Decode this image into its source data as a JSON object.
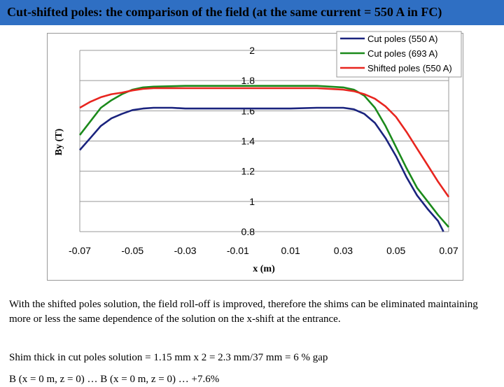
{
  "slide": {
    "title": "Cut-shifted poles: the comparison of the field (at the same current = 550 A in FC)",
    "paragraph1": "With the shifted poles solution, the field roll-off is improved, therefore the shims can be eliminated maintaining more or less the same dependence of the solution on the x-shift at the entrance.",
    "paragraph2": "Shim thick in cut poles solution = 1.15 mm x 2 = 2.3 mm/37 mm = 6 % gap",
    "paragraph3": "B (x = 0 m, z = 0) … B (x = 0 m, z = 0) … +7.6%"
  },
  "colors": {
    "title_bar": "#2f6fc3",
    "cut_550": "#1a237e",
    "cut_693": "#1b8a1b",
    "shifted_550": "#e8251f",
    "plot_border": "#999999",
    "gridline": "#999999"
  },
  "chart_data": {
    "type": "line",
    "xlabel": "x (m)",
    "ylabel": "By (T)",
    "xlim": [
      -0.07,
      0.07
    ],
    "ylim": [
      0.8,
      2.0
    ],
    "xticks": [
      -0.07,
      -0.05,
      -0.03,
      -0.01,
      0.01,
      0.03,
      0.05,
      0.07
    ],
    "xtick_labels": [
      "-0.07",
      "-0.05",
      "-0.03",
      "-0.01",
      "0.01",
      "0.03",
      "0.05",
      "0.07"
    ],
    "yticks": [
      0.8,
      1.0,
      1.2,
      1.4,
      1.6,
      1.8,
      2.0
    ],
    "ytick_labels": [
      "0.8",
      "1",
      "1.2",
      "1.4",
      "1.6",
      "1.8",
      "2"
    ],
    "grid": "horizontal",
    "legend_position": "top-right",
    "series": [
      {
        "name": "Cut poles (550 A)",
        "color": "#1a237e",
        "points": [
          [
            -0.07,
            1.34
          ],
          [
            -0.066,
            1.42
          ],
          [
            -0.062,
            1.5
          ],
          [
            -0.058,
            1.55
          ],
          [
            -0.054,
            1.58
          ],
          [
            -0.05,
            1.605
          ],
          [
            -0.046,
            1.615
          ],
          [
            -0.042,
            1.62
          ],
          [
            -0.035,
            1.62
          ],
          [
            -0.03,
            1.615
          ],
          [
            -0.02,
            1.615
          ],
          [
            -0.01,
            1.615
          ],
          [
            0.0,
            1.615
          ],
          [
            0.01,
            1.615
          ],
          [
            0.02,
            1.62
          ],
          [
            0.03,
            1.62
          ],
          [
            0.034,
            1.61
          ],
          [
            0.038,
            1.58
          ],
          [
            0.042,
            1.52
          ],
          [
            0.046,
            1.42
          ],
          [
            0.05,
            1.3
          ],
          [
            0.054,
            1.16
          ],
          [
            0.058,
            1.04
          ],
          [
            0.062,
            0.95
          ],
          [
            0.066,
            0.87
          ],
          [
            0.068,
            0.8
          ]
        ]
      },
      {
        "name": "Cut poles (693 A)",
        "color": "#1b8a1b",
        "points": [
          [
            -0.07,
            1.44
          ],
          [
            -0.066,
            1.53
          ],
          [
            -0.062,
            1.62
          ],
          [
            -0.058,
            1.67
          ],
          [
            -0.054,
            1.71
          ],
          [
            -0.05,
            1.74
          ],
          [
            -0.046,
            1.755
          ],
          [
            -0.042,
            1.76
          ],
          [
            -0.03,
            1.765
          ],
          [
            -0.02,
            1.765
          ],
          [
            -0.01,
            1.765
          ],
          [
            0.0,
            1.765
          ],
          [
            0.01,
            1.765
          ],
          [
            0.02,
            1.765
          ],
          [
            0.03,
            1.755
          ],
          [
            0.034,
            1.74
          ],
          [
            0.038,
            1.7
          ],
          [
            0.042,
            1.62
          ],
          [
            0.046,
            1.5
          ],
          [
            0.05,
            1.36
          ],
          [
            0.054,
            1.22
          ],
          [
            0.058,
            1.09
          ],
          [
            0.062,
            1.0
          ],
          [
            0.066,
            0.91
          ],
          [
            0.07,
            0.83
          ]
        ]
      },
      {
        "name": "Shifted poles (550 A)",
        "color": "#e8251f",
        "points": [
          [
            -0.07,
            1.62
          ],
          [
            -0.066,
            1.66
          ],
          [
            -0.062,
            1.69
          ],
          [
            -0.058,
            1.71
          ],
          [
            -0.054,
            1.72
          ],
          [
            -0.05,
            1.735
          ],
          [
            -0.046,
            1.745
          ],
          [
            -0.042,
            1.75
          ],
          [
            -0.03,
            1.75
          ],
          [
            -0.02,
            1.75
          ],
          [
            -0.01,
            1.75
          ],
          [
            0.0,
            1.75
          ],
          [
            0.01,
            1.75
          ],
          [
            0.02,
            1.75
          ],
          [
            0.03,
            1.74
          ],
          [
            0.034,
            1.73
          ],
          [
            0.038,
            1.71
          ],
          [
            0.042,
            1.68
          ],
          [
            0.046,
            1.63
          ],
          [
            0.05,
            1.56
          ],
          [
            0.054,
            1.46
          ],
          [
            0.058,
            1.35
          ],
          [
            0.062,
            1.24
          ],
          [
            0.066,
            1.13
          ],
          [
            0.07,
            1.03
          ]
        ]
      }
    ]
  }
}
